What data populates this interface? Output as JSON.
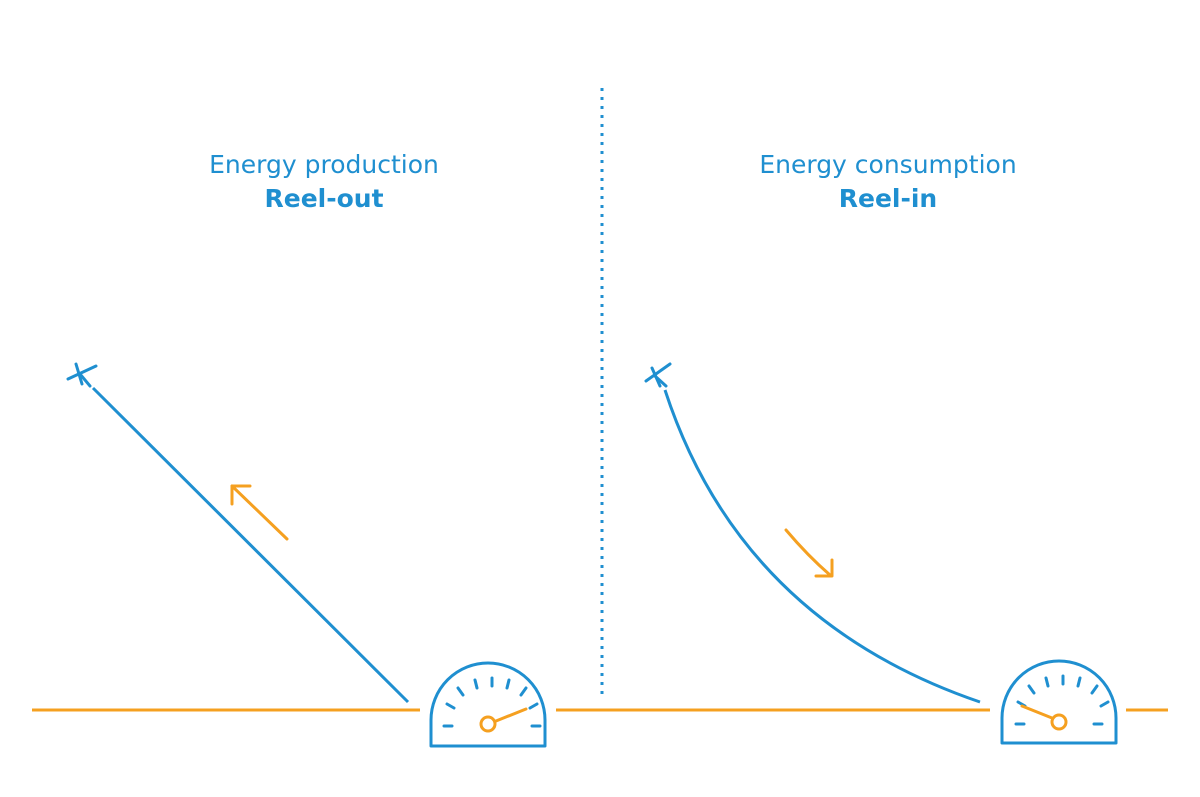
{
  "colors": {
    "blue": "#1f8fd0",
    "orange": "#f5a020"
  },
  "left_panel": {
    "title": "Energy production",
    "subtitle": "Reel-out"
  },
  "right_panel": {
    "title": "Energy consumption",
    "subtitle": "Reel-in"
  }
}
